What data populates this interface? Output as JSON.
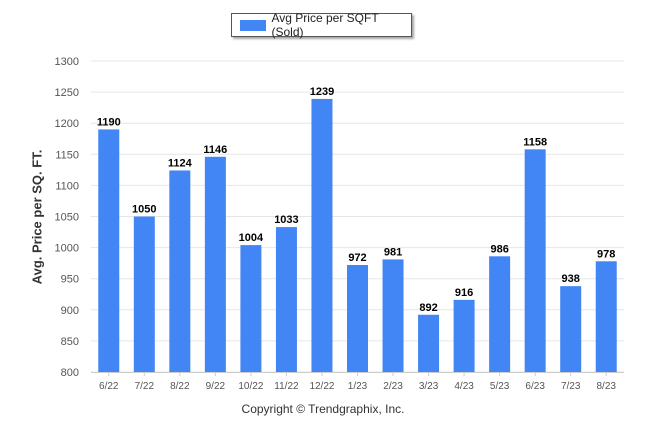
{
  "legend": {
    "label": "Avg Price per SQFT (Sold)"
  },
  "copyright": "Copyright © Trendgraphix, Inc.",
  "colors": {
    "bar": "#4285f4",
    "grid": "#e6e6e6",
    "axis_text": "#555555"
  },
  "chart_data": {
    "type": "bar",
    "title": "",
    "xlabel": "",
    "ylabel": "Avg. Price per SQ. FT.",
    "categories": [
      "6/22",
      "7/22",
      "8/22",
      "9/22",
      "10/22",
      "11/22",
      "12/22",
      "1/23",
      "2/23",
      "3/23",
      "4/23",
      "5/23",
      "6/23",
      "7/23",
      "8/23"
    ],
    "series": [
      {
        "name": "Avg Price per SQFT (Sold)",
        "values": [
          1190,
          1050,
          1124,
          1146,
          1004,
          1033,
          1239,
          972,
          981,
          892,
          916,
          986,
          1158,
          938,
          978
        ]
      }
    ],
    "ylim": [
      800,
      1300
    ],
    "yticks": [
      800,
      850,
      900,
      950,
      1000,
      1050,
      1100,
      1150,
      1200,
      1250,
      1300
    ],
    "grid": true,
    "legend_position": "top-center",
    "data_labels": true
  }
}
